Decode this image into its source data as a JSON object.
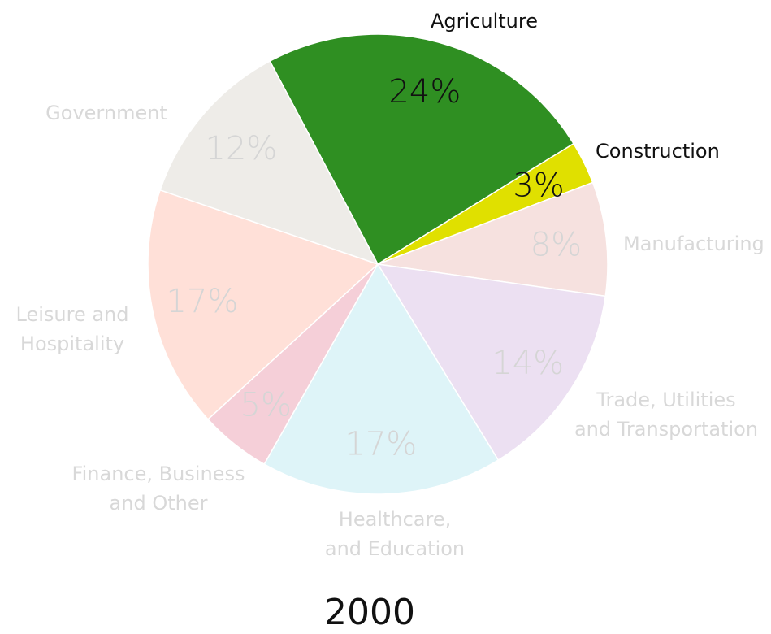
{
  "chart_data": {
    "type": "pie",
    "title": "2000",
    "slices": [
      {
        "label": "Agriculture",
        "label_lines": [
          "Agriculture"
        ],
        "value": 24,
        "value_label": "24%",
        "color": "#2f8f22",
        "label_color": "#111111",
        "value_color": "#111111"
      },
      {
        "label": "Construction",
        "label_lines": [
          "Construction"
        ],
        "value": 3,
        "value_label": "3%",
        "color": "#e0e000",
        "label_color": "#111111",
        "value_color": "#111111"
      },
      {
        "label": "Manufacturing",
        "label_lines": [
          "Manufacturing"
        ],
        "value": 8,
        "value_label": "8%",
        "color": "#f6e1df",
        "label_color": "#d8d8d8",
        "value_color": "#d5d5d5"
      },
      {
        "label": "Trade, Utilities and Transportation",
        "label_lines": [
          "Trade, Utilities",
          "and Transportation"
        ],
        "value": 14,
        "value_label": "14%",
        "color": "#ece0f2",
        "label_color": "#d8d8d8",
        "value_color": "#d5d5d5"
      },
      {
        "label": "Healthcare, and Education",
        "label_lines": [
          "Healthcare,",
          "and Education"
        ],
        "value": 17,
        "value_label": "17%",
        "color": "#def4f8",
        "label_color": "#d8d8d8",
        "value_color": "#d5d5d5"
      },
      {
        "label": "Finance, Business and Other",
        "label_lines": [
          "Finance, Business",
          "and Other"
        ],
        "value": 5,
        "value_label": "5%",
        "color": "#f5cfd8",
        "label_color": "#d8d8d8",
        "value_color": "#d5d5d5"
      },
      {
        "label": "Leisure and Hospitality",
        "label_lines": [
          "Leisure and",
          "Hospitality"
        ],
        "value": 17,
        "value_label": "17%",
        "color": "#ffe0d8",
        "label_color": "#d8d8d8",
        "value_color": "#d5d5d5"
      },
      {
        "label": "Government",
        "label_lines": [
          "Government"
        ],
        "value": 12,
        "value_label": "12%",
        "color": "#eeece8",
        "label_color": "#d8d8d8",
        "value_color": "#d5d5d5"
      }
    ]
  }
}
